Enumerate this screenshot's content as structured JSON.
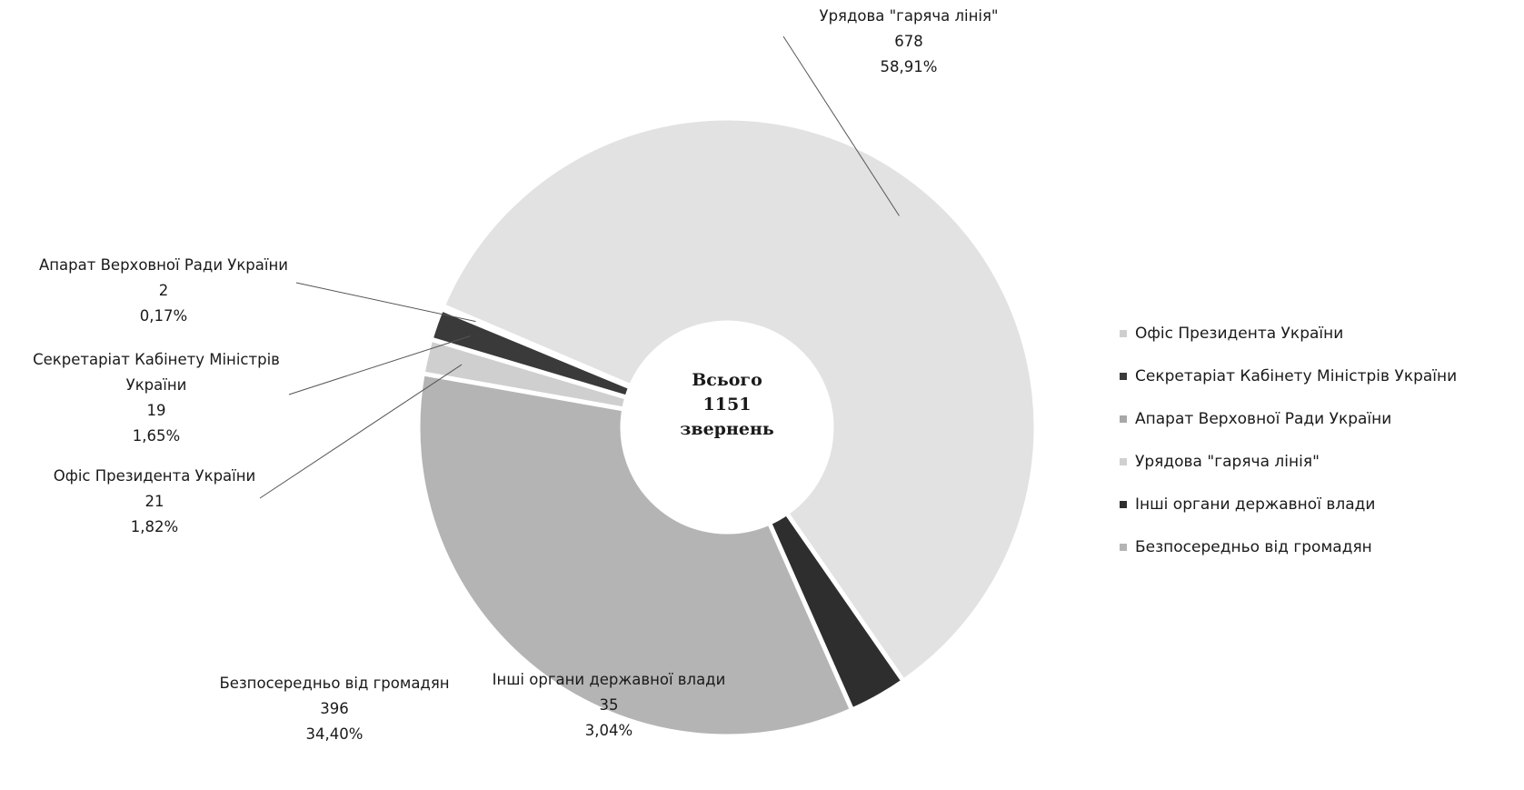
{
  "chart_data": {
    "type": "pie",
    "variant": "donut",
    "center": {
      "line1": "Всього",
      "line2": "1151",
      "line3": "звернень"
    },
    "slices": [
      {
        "name": "Офіс Президента України",
        "value": 21,
        "value_label": "21",
        "percent_label": "1,82%",
        "color": "#cfcfcf"
      },
      {
        "name": "Секретаріат Кабінету Міністрів України",
        "value": 19,
        "value_label": "19",
        "percent_label": "1,65%",
        "color": "#3a3a3a"
      },
      {
        "name": "Апарат Верховної Ради України",
        "value": 2,
        "value_label": "2",
        "percent_label": "0,17%",
        "color": "#a8a8a8"
      },
      {
        "name": "Урядова \"гаряча лінія\"",
        "value": 678,
        "value_label": "678",
        "percent_label": "58,91%",
        "color": "#e2e2e2"
      },
      {
        "name": "Інші органи державної влади",
        "value": 35,
        "value_label": "35",
        "percent_label": "3,04%",
        "color": "#2e2e2e"
      },
      {
        "name": "Безпосередньо від громадян",
        "value": 396,
        "value_label": "396",
        "percent_label": "34,40%",
        "color": "#b4b4b4"
      }
    ],
    "label_names": {
      "office": [
        "Офіс Президента України"
      ],
      "secretariat": [
        "Секретаріат Кабінету Міністрів",
        "України"
      ],
      "apparatus": [
        "Апарат Верховної Ради України"
      ],
      "hotline": [
        "Урядова \"гаряча лінія\""
      ],
      "other": [
        "Інші органи державної влади"
      ],
      "citizens": [
        "Безпосередньо від громадян"
      ]
    },
    "legend": {
      "position": "right",
      "items": [
        "Офіс Президента України",
        "Секретаріат Кабінету Міністрів України",
        "Апарат Верховної Ради України",
        "Урядова \"гаряча лінія\"",
        "Інші органи державної влади",
        "Безпосередньо від громадян"
      ]
    }
  }
}
